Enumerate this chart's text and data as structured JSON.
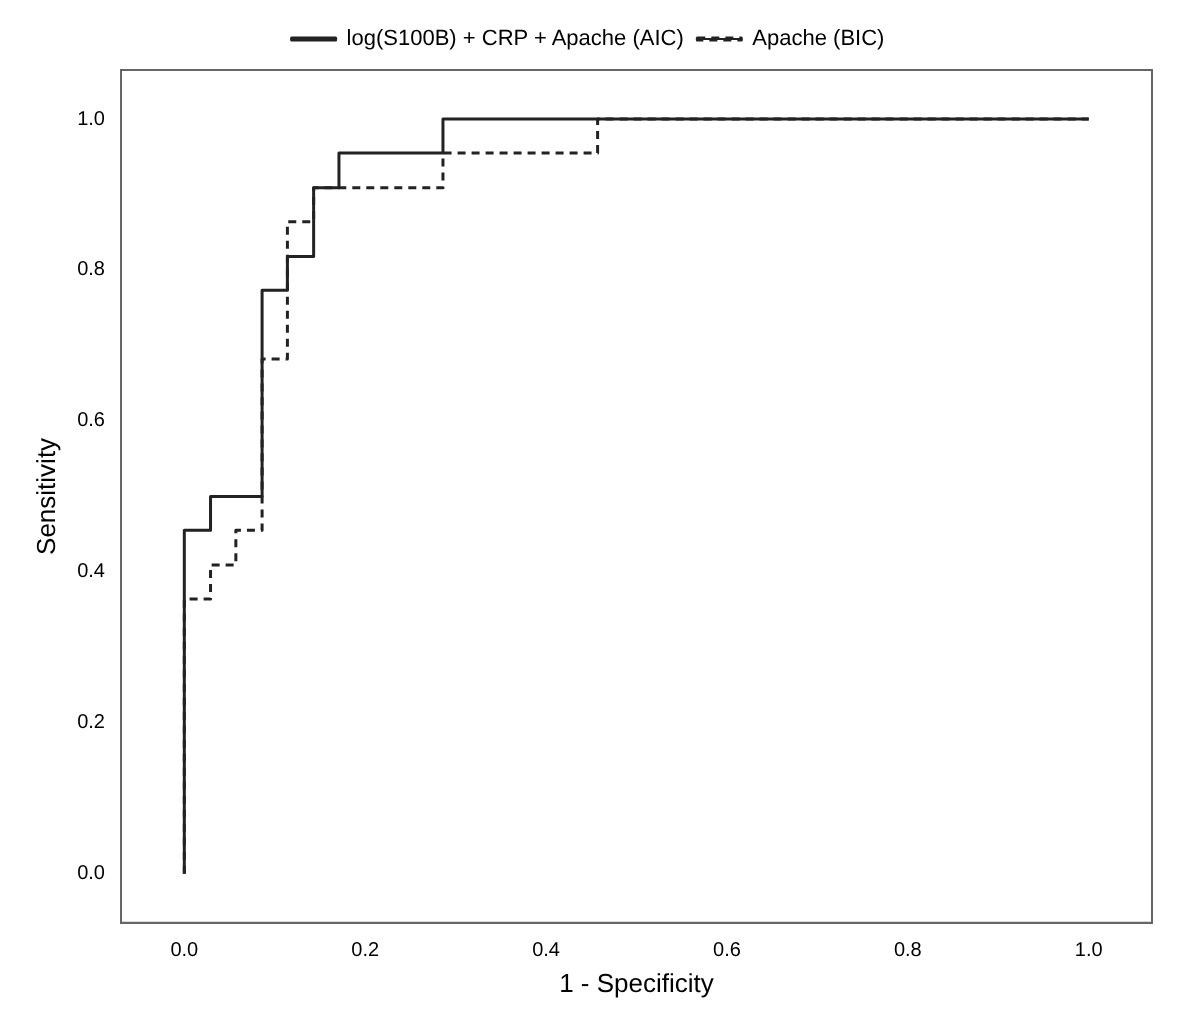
{
  "chart_data": {
    "type": "step",
    "xlabel": "1 - Specificity",
    "ylabel": "Sensitivity",
    "legend": "top",
    "grid": false,
    "xlim": [
      -0.07,
      1.07
    ],
    "ylim": [
      -0.065,
      1.065
    ],
    "xticks": [
      {
        "value": 0,
        "label": "0.0"
      },
      {
        "value": 0.2,
        "label": "0.2"
      },
      {
        "value": 0.4,
        "label": "0.4"
      },
      {
        "value": 0.6,
        "label": "0.6"
      },
      {
        "value": 0.8,
        "label": "0.8"
      },
      {
        "value": 1,
        "label": "1.0"
      }
    ],
    "yticks": [
      {
        "value": 0,
        "label": "0.0"
      },
      {
        "value": 0.2,
        "label": "0.2"
      },
      {
        "value": 0.4,
        "label": "0.4"
      },
      {
        "value": 0.6,
        "label": "0.6"
      },
      {
        "value": 0.8,
        "label": "0.8"
      },
      {
        "value": 1,
        "label": "1.0"
      }
    ],
    "series": [
      {
        "name": "log(S100B) + CRP + Apache (AIC)",
        "color": "#222222",
        "line_style": "solid",
        "x": [
          0,
          0,
          0.029,
          0.086,
          0.114,
          0.143,
          0.171,
          0.286,
          0.429,
          1
        ],
        "values": [
          0,
          0.41,
          0.455,
          0.5,
          0.773,
          0.818,
          0.909,
          0.955,
          1,
          1
        ]
      },
      {
        "name": "Apache (BIC)",
        "color": "#222222",
        "line_style": "dashed",
        "x": [
          0,
          0,
          0.029,
          0.057,
          0.086,
          0.114,
          0.143,
          0.286,
          0.457,
          0.6,
          1
        ],
        "values": [
          0,
          0.273,
          0.364,
          0.409,
          0.455,
          0.682,
          0.864,
          0.909,
          0.955,
          1,
          1
        ]
      }
    ]
  }
}
